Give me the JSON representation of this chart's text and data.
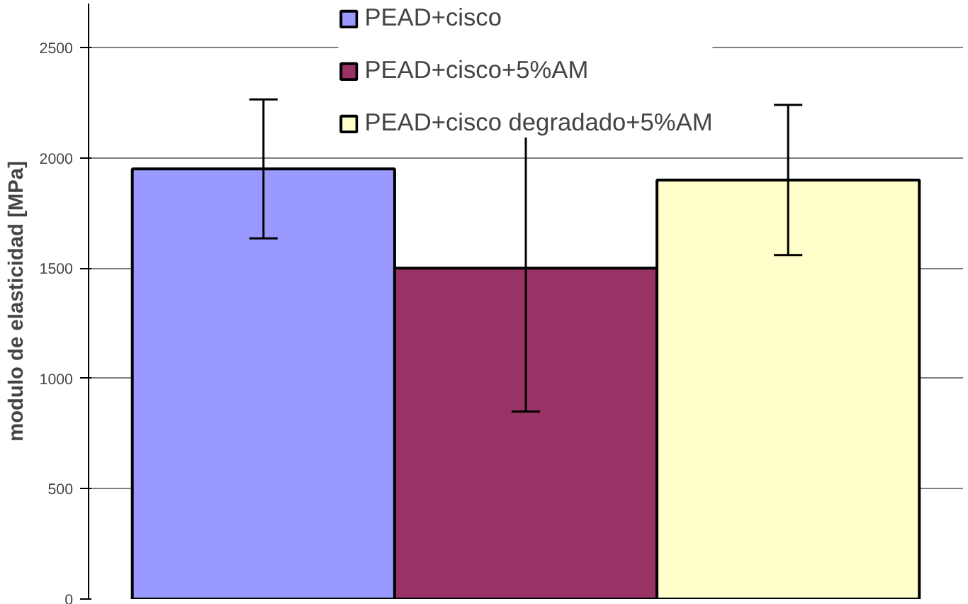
{
  "chart_data": {
    "type": "bar",
    "ylabel": "modulo de elasticidad [MPa]",
    "categories": [
      null
    ],
    "series": [
      {
        "name": "PEAD+cisco",
        "color": "#9999ff",
        "values": [
          1950
        ],
        "errors": [
          315
        ]
      },
      {
        "name": "PEAD+cisco+5%AM",
        "color": "#993366",
        "values": [
          1500
        ],
        "errors": [
          650
        ]
      },
      {
        "name": "PEAD+cisco degradado+5%AM",
        "color": "#ffffcc",
        "values": [
          1900
        ],
        "errors": [
          340
        ]
      }
    ],
    "ylim": [
      0,
      2700
    ],
    "yticks": [
      0,
      500,
      1000,
      1500,
      2000,
      2500
    ],
    "grid": "y",
    "legend": "top"
  }
}
